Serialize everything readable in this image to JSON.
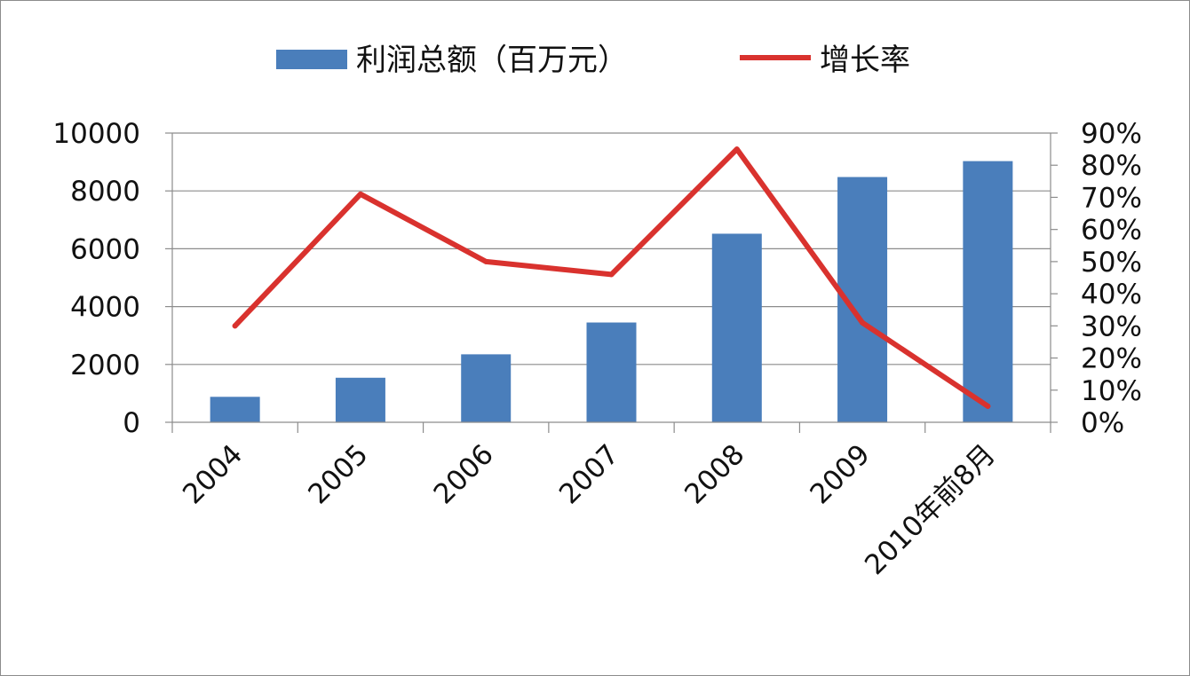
{
  "chart_data": {
    "type": "bar",
    "categories": [
      "2004",
      "2005",
      "2006",
      "2007",
      "2008",
      "2009",
      "2010年前8月"
    ],
    "series": [
      {
        "name": "利润总额（百万元）",
        "type": "bar",
        "axis": "left",
        "color": "#4a7ebb",
        "values": [
          880,
          1540,
          2350,
          3450,
          6520,
          8480,
          9030
        ]
      },
      {
        "name": "增长率",
        "type": "line",
        "axis": "right",
        "color": "#d9322e",
        "values": [
          0.3,
          0.71,
          0.5,
          0.46,
          0.85,
          0.31,
          0.05
        ]
      }
    ],
    "y_left": {
      "min": 0,
      "max": 10000,
      "ticks": [
        "0",
        "2000",
        "4000",
        "6000",
        "8000",
        "10000"
      ]
    },
    "y_right": {
      "min": 0,
      "max": 0.9,
      "ticks": [
        "0%",
        "10%",
        "20%",
        "30%",
        "40%",
        "50%",
        "60%",
        "70%",
        "80%",
        "90%"
      ]
    },
    "grid": true,
    "legend_position": "top"
  }
}
